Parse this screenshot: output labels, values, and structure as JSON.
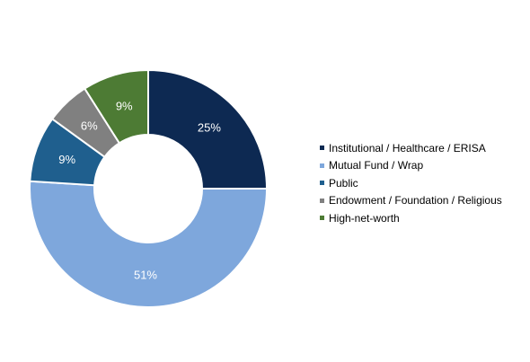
{
  "chart_data": {
    "type": "pie",
    "donut": true,
    "title": "",
    "categories": [
      "Institutional / Healthcare / ERISA",
      "Mutual Fund / Wrap",
      "Public",
      "Endowment / Foundation / Religious",
      "High-net-worth"
    ],
    "values": [
      25,
      51,
      9,
      6,
      9
    ],
    "data_labels": [
      "25%",
      "51%",
      "9%",
      "6%",
      "9%"
    ],
    "colors": [
      "#0d2952",
      "#7ea7dc",
      "#1f5f8e",
      "#808080",
      "#4d7b34"
    ],
    "legend_position": "right"
  }
}
